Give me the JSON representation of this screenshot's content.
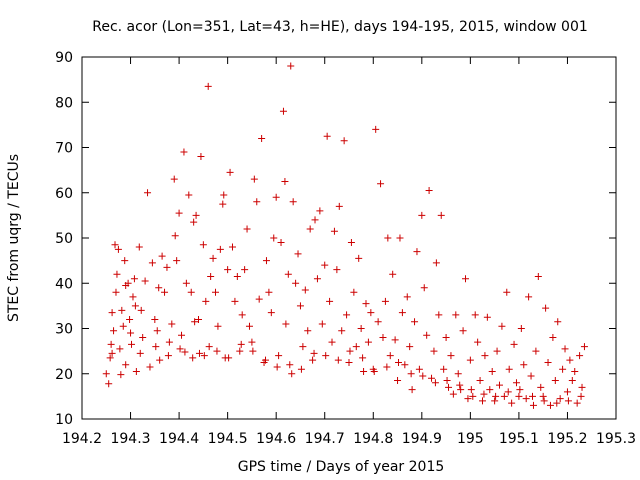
{
  "chart_data": {
    "type": "scatter",
    "title": "Rec. acor (Lon=351, Lat=43, h=HE), days 194-195, 2015, window 001",
    "xlabel": "GPS time / Days of year 2015",
    "ylabel": "STEC from uqrg / TECUs",
    "xlim": [
      194.2,
      195.3
    ],
    "ylim": [
      10,
      90
    ],
    "xticks": [
      194.2,
      194.3,
      194.4,
      194.5,
      194.6,
      194.7,
      194.8,
      194.9,
      195.0,
      195.1,
      195.2,
      195.3
    ],
    "xtick_labels": [
      "194.2",
      "194.3",
      "194.4",
      "194.5",
      "194.6",
      "194.7",
      "194.8",
      "194.9",
      "195",
      "195.1",
      "195.2",
      "195.3"
    ],
    "yticks": [
      10,
      20,
      30,
      40,
      50,
      60,
      70,
      80,
      90
    ],
    "ytick_labels": [
      "10",
      "20",
      "30",
      "40",
      "50",
      "60",
      "70",
      "80",
      "90"
    ],
    "marker": "+",
    "color": "#cc0000",
    "grid": false,
    "series": [
      {
        "name": "STEC",
        "points": [
          [
            194.25,
            20.0
          ],
          [
            194.255,
            17.8
          ],
          [
            194.258,
            23.5
          ],
          [
            194.26,
            26.5
          ],
          [
            194.262,
            33.5
          ],
          [
            194.265,
            29.5
          ],
          [
            194.268,
            48.5
          ],
          [
            194.27,
            38.0
          ],
          [
            194.272,
            42.0
          ],
          [
            194.275,
            47.5
          ],
          [
            194.278,
            25.5
          ],
          [
            194.28,
            19.8
          ],
          [
            194.282,
            34.0
          ],
          [
            194.285,
            30.5
          ],
          [
            194.288,
            45.0
          ],
          [
            194.29,
            39.5
          ],
          [
            194.295,
            40.0
          ],
          [
            194.298,
            32.0
          ],
          [
            194.3,
            29.0
          ],
          [
            194.302,
            26.5
          ],
          [
            194.305,
            37.0
          ],
          [
            194.308,
            41.0
          ],
          [
            194.31,
            35.0
          ],
          [
            194.312,
            20.5
          ],
          [
            194.318,
            48.0
          ],
          [
            194.322,
            34.0
          ],
          [
            194.325,
            28.0
          ],
          [
            194.33,
            40.5
          ],
          [
            194.335,
            60.0
          ],
          [
            194.34,
            21.5
          ],
          [
            194.345,
            44.5
          ],
          [
            194.35,
            32.0
          ],
          [
            194.355,
            29.5
          ],
          [
            194.358,
            39.0
          ],
          [
            194.36,
            23.0
          ],
          [
            194.365,
            46.0
          ],
          [
            194.37,
            38.0
          ],
          [
            194.375,
            43.5
          ],
          [
            194.38,
            27.0
          ],
          [
            194.385,
            31.0
          ],
          [
            194.39,
            63.0
          ],
          [
            194.392,
            50.5
          ],
          [
            194.395,
            45.0
          ],
          [
            194.4,
            55.5
          ],
          [
            194.405,
            28.5
          ],
          [
            194.41,
            69.0
          ],
          [
            194.412,
            24.8
          ],
          [
            194.415,
            40.0
          ],
          [
            194.42,
            59.5
          ],
          [
            194.425,
            38.0
          ],
          [
            194.43,
            53.5
          ],
          [
            194.432,
            31.5
          ],
          [
            194.435,
            55.0
          ],
          [
            194.44,
            32.0
          ],
          [
            194.442,
            24.5
          ],
          [
            194.445,
            68.0
          ],
          [
            194.45,
            48.5
          ],
          [
            194.455,
            36.0
          ],
          [
            194.46,
            83.5
          ],
          [
            194.462,
            26.0
          ],
          [
            194.465,
            41.5
          ],
          [
            194.47,
            45.5
          ],
          [
            194.475,
            38.0
          ],
          [
            194.48,
            30.5
          ],
          [
            194.485,
            47.5
          ],
          [
            194.49,
            57.5
          ],
          [
            194.492,
            59.5
          ],
          [
            194.495,
            23.5
          ],
          [
            194.5,
            43.0
          ],
          [
            194.505,
            64.5
          ],
          [
            194.51,
            48.0
          ],
          [
            194.515,
            36.0
          ],
          [
            194.52,
            41.5
          ],
          [
            194.525,
            25.0
          ],
          [
            194.53,
            33.0
          ],
          [
            194.535,
            43.0
          ],
          [
            194.54,
            52.0
          ],
          [
            194.545,
            30.5
          ],
          [
            194.55,
            27.0
          ],
          [
            194.555,
            63.0
          ],
          [
            194.56,
            58.0
          ],
          [
            194.565,
            36.5
          ],
          [
            194.57,
            72.0
          ],
          [
            194.575,
            22.5
          ],
          [
            194.58,
            45.0
          ],
          [
            194.585,
            38.0
          ],
          [
            194.59,
            33.5
          ],
          [
            194.595,
            50.0
          ],
          [
            194.6,
            59.0
          ],
          [
            194.605,
            24.0
          ],
          [
            194.61,
            49.0
          ],
          [
            194.615,
            78.0
          ],
          [
            194.618,
            62.5
          ],
          [
            194.62,
            31.0
          ],
          [
            194.625,
            42.0
          ],
          [
            194.63,
            88.0
          ],
          [
            194.632,
            20.0
          ],
          [
            194.635,
            58.0
          ],
          [
            194.64,
            40.0
          ],
          [
            194.645,
            46.5
          ],
          [
            194.65,
            35.0
          ],
          [
            194.655,
            26.0
          ],
          [
            194.66,
            38.5
          ],
          [
            194.665,
            29.5
          ],
          [
            194.67,
            52.0
          ],
          [
            194.675,
            23.0
          ],
          [
            194.68,
            54.0
          ],
          [
            194.685,
            41.0
          ],
          [
            194.69,
            56.0
          ],
          [
            194.695,
            31.0
          ],
          [
            194.7,
            44.0
          ],
          [
            194.705,
            72.5
          ],
          [
            194.71,
            36.0
          ],
          [
            194.715,
            27.0
          ],
          [
            194.72,
            51.5
          ],
          [
            194.725,
            43.0
          ],
          [
            194.73,
            57.0
          ],
          [
            194.735,
            29.5
          ],
          [
            194.74,
            71.5
          ],
          [
            194.745,
            33.0
          ],
          [
            194.75,
            22.5
          ],
          [
            194.755,
            49.0
          ],
          [
            194.76,
            38.0
          ],
          [
            194.765,
            26.0
          ],
          [
            194.77,
            45.5
          ],
          [
            194.775,
            30.0
          ],
          [
            194.78,
            20.5
          ],
          [
            194.785,
            35.5
          ],
          [
            194.79,
            27.0
          ],
          [
            194.795,
            33.5
          ],
          [
            194.8,
            21.0
          ],
          [
            194.805,
            74.0
          ],
          [
            194.81,
            31.5
          ],
          [
            194.815,
            62.0
          ],
          [
            194.82,
            28.0
          ],
          [
            194.825,
            36.0
          ],
          [
            194.83,
            50.0
          ],
          [
            194.835,
            24.0
          ],
          [
            194.84,
            42.0
          ],
          [
            194.845,
            27.5
          ],
          [
            194.85,
            18.5
          ],
          [
            194.855,
            50.0
          ],
          [
            194.86,
            33.5
          ],
          [
            194.865,
            22.0
          ],
          [
            194.87,
            37.0
          ],
          [
            194.875,
            26.0
          ],
          [
            194.88,
            16.5
          ],
          [
            194.885,
            31.5
          ],
          [
            194.89,
            47.0
          ],
          [
            194.895,
            21.0
          ],
          [
            194.9,
            55.0
          ],
          [
            194.905,
            39.0
          ],
          [
            194.91,
            28.5
          ],
          [
            194.915,
            60.5
          ],
          [
            194.92,
            19.0
          ],
          [
            194.925,
            25.0
          ],
          [
            194.93,
            44.5
          ],
          [
            194.935,
            33.0
          ],
          [
            194.94,
            55.0
          ],
          [
            194.945,
            21.0
          ],
          [
            194.95,
            28.0
          ],
          [
            194.955,
            17.0
          ],
          [
            194.96,
            24.0
          ],
          [
            194.965,
            15.5
          ],
          [
            194.97,
            33.0
          ],
          [
            194.975,
            20.0
          ],
          [
            194.98,
            16.5
          ],
          [
            194.985,
            29.5
          ],
          [
            194.99,
            41.0
          ],
          [
            194.995,
            14.5
          ],
          [
            195.0,
            23.0
          ],
          [
            195.005,
            15.0
          ],
          [
            195.01,
            33.0
          ],
          [
            195.015,
            27.0
          ],
          [
            195.02,
            18.5
          ],
          [
            195.025,
            14.0
          ],
          [
            195.03,
            24.0
          ],
          [
            195.035,
            32.5
          ],
          [
            195.04,
            16.5
          ],
          [
            195.045,
            20.5
          ],
          [
            195.05,
            14.0
          ],
          [
            195.055,
            25.0
          ],
          [
            195.06,
            17.5
          ],
          [
            195.065,
            30.5
          ],
          [
            195.07,
            15.0
          ],
          [
            195.075,
            38.0
          ],
          [
            195.08,
            21.0
          ],
          [
            195.085,
            13.5
          ],
          [
            195.09,
            26.5
          ],
          [
            195.095,
            18.0
          ],
          [
            195.1,
            15.0
          ],
          [
            195.105,
            30.0
          ],
          [
            195.11,
            22.0
          ],
          [
            195.115,
            14.5
          ],
          [
            195.12,
            37.0
          ],
          [
            195.125,
            19.5
          ],
          [
            195.13,
            13.0
          ],
          [
            195.135,
            25.0
          ],
          [
            195.14,
            41.5
          ],
          [
            195.145,
            17.0
          ],
          [
            195.15,
            15.0
          ],
          [
            195.155,
            34.5
          ],
          [
            195.16,
            22.5
          ],
          [
            195.165,
            13.0
          ],
          [
            195.17,
            28.0
          ],
          [
            195.175,
            18.5
          ],
          [
            195.18,
            31.5
          ],
          [
            195.185,
            14.5
          ],
          [
            195.19,
            21.0
          ],
          [
            195.195,
            25.5
          ],
          [
            195.2,
            16.0
          ],
          [
            195.205,
            23.0
          ],
          [
            195.21,
            18.5
          ],
          [
            195.215,
            20.5
          ],
          [
            195.22,
            13.5
          ],
          [
            195.225,
            24.0
          ],
          [
            195.23,
            17.0
          ],
          [
            195.235,
            26.0
          ],
          [
            194.262,
            24.5
          ],
          [
            194.29,
            22.0
          ],
          [
            194.32,
            24.5
          ],
          [
            194.352,
            26.0
          ],
          [
            194.378,
            24.0
          ],
          [
            194.402,
            25.5
          ],
          [
            194.428,
            23.5
          ],
          [
            194.452,
            24.0
          ],
          [
            194.478,
            25.0
          ],
          [
            194.502,
            23.5
          ],
          [
            194.528,
            26.5
          ],
          [
            194.552,
            25.0
          ],
          [
            194.578,
            23.0
          ],
          [
            194.602,
            21.5
          ],
          [
            194.628,
            22.0
          ],
          [
            194.652,
            21.0
          ],
          [
            194.678,
            24.5
          ],
          [
            194.702,
            24.0
          ],
          [
            194.728,
            23.0
          ],
          [
            194.752,
            25.0
          ],
          [
            194.778,
            23.5
          ],
          [
            194.802,
            20.5
          ],
          [
            194.828,
            21.5
          ],
          [
            194.852,
            22.5
          ],
          [
            194.878,
            20.0
          ],
          [
            194.902,
            19.5
          ],
          [
            194.928,
            18.0
          ],
          [
            194.952,
            18.5
          ],
          [
            194.978,
            17.5
          ],
          [
            195.002,
            16.5
          ],
          [
            195.028,
            15.5
          ],
          [
            195.052,
            15.0
          ],
          [
            195.078,
            16.0
          ],
          [
            195.102,
            16.5
          ],
          [
            195.128,
            15.0
          ],
          [
            195.152,
            14.0
          ],
          [
            195.178,
            13.5
          ],
          [
            195.202,
            14.0
          ],
          [
            195.228,
            15.0
          ]
        ]
      }
    ]
  }
}
